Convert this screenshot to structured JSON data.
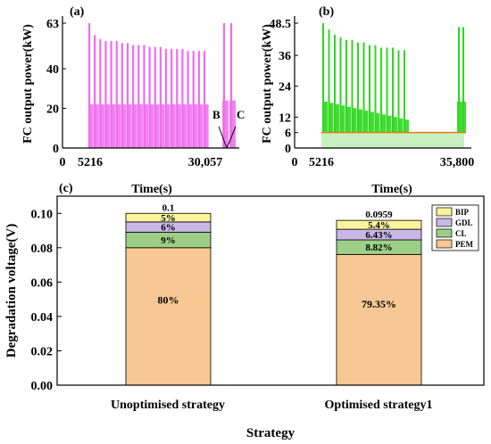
{
  "colors": {
    "pink": "#f06cf0",
    "green": "#2fd81f",
    "green_base": "#c8f0c0",
    "base_line": "#e07d10",
    "PEM": "#f7c893",
    "CL": "#9dcf86",
    "GDL": "#c8b8e6",
    "BIP": "#fbf39b"
  },
  "chart_data": [
    {
      "panel": "(a)",
      "type": "area",
      "ylabel": "FC output power(kW)",
      "xlabel": "Time(s)",
      "x_ticks": [
        "0",
        "5216",
        "30,057"
      ],
      "y_ticks": [
        "0",
        "20",
        "40",
        "63"
      ],
      "ylim": [
        0,
        63
      ],
      "series_color": "pink",
      "peaks": [
        63,
        57,
        55,
        54,
        54,
        54,
        53,
        53,
        52,
        52,
        52,
        51,
        51,
        51,
        50,
        50,
        50,
        50,
        49,
        49,
        49,
        49
      ],
      "end_peaks": [
        63,
        63
      ],
      "annotations": [
        "B",
        "C"
      ]
    },
    {
      "panel": "(b)",
      "type": "area",
      "ylabel": "FC output power(kW)",
      "xlabel": "Time(s)",
      "x_ticks": [
        "0",
        "5216",
        "35,800"
      ],
      "y_ticks": [
        "0",
        "6",
        "12",
        "24",
        "36",
        "48.5"
      ],
      "ylim": [
        0,
        48.5
      ],
      "series_color": "green",
      "baseline": 6,
      "peaks": [
        48.5,
        46,
        44,
        43,
        42,
        42,
        41,
        41,
        40,
        40,
        39,
        39,
        39,
        38,
        38
      ],
      "end_peaks": [
        47,
        47
      ]
    },
    {
      "panel": "(c)",
      "type": "bar",
      "stacked": true,
      "xlabel": "Strategy",
      "ylabel": "Degradation voltage(V)",
      "ylim": [
        0,
        0.11
      ],
      "y_ticks": [
        "0.00",
        "0.02",
        "0.04",
        "0.06",
        "0.08",
        "0.10"
      ],
      "categories": [
        "Unoptimised strategy",
        "Optimised strategy1"
      ],
      "totals": [
        "0.1",
        "0.0959"
      ],
      "series": [
        {
          "name": "PEM",
          "color": "PEM",
          "values": [
            0.08,
            0.0761
          ],
          "labels": [
            "80%",
            "79.35%"
          ]
        },
        {
          "name": "CL",
          "color": "CL",
          "values": [
            0.009,
            0.00846
          ],
          "labels": [
            "9%",
            "8.82%"
          ]
        },
        {
          "name": "GDL",
          "color": "GDL",
          "values": [
            0.006,
            0.00617
          ],
          "labels": [
            "6%",
            "6.43%"
          ]
        },
        {
          "name": "BIP",
          "color": "BIP",
          "values": [
            0.005,
            0.00518
          ],
          "labels": [
            "5%",
            "5.4%"
          ]
        }
      ],
      "legend_order": [
        "BIP",
        "GDL",
        "CL",
        "PEM"
      ],
      "legend_position": "top-right"
    }
  ]
}
